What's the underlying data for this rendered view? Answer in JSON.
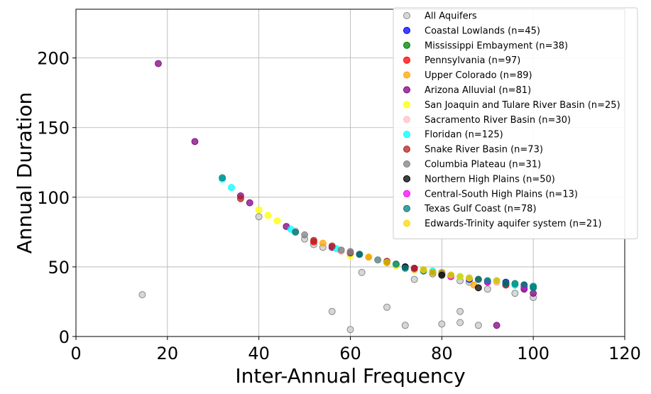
{
  "chart_data": {
    "type": "scatter",
    "xlabel": "Inter-Annual Frequency",
    "ylabel": "Annual Duration",
    "xlim": [
      0,
      120
    ],
    "ylim": [
      0,
      235
    ],
    "xticks": [
      0,
      20,
      40,
      60,
      80,
      100,
      120
    ],
    "yticks": [
      0,
      50,
      100,
      150,
      200
    ],
    "grid": true,
    "legend_position": "top-right",
    "series": [
      {
        "name": "All Aquifers",
        "color": "#d3d3d3",
        "edge": "#888888",
        "points": [
          [
            14.5,
            30
          ],
          [
            40,
            86
          ],
          [
            50,
            70
          ],
          [
            52,
            66
          ],
          [
            54,
            64
          ],
          [
            56,
            18
          ],
          [
            58,
            62
          ],
          [
            60,
            5
          ],
          [
            62.5,
            46
          ],
          [
            68,
            21
          ],
          [
            72,
            8
          ],
          [
            74,
            41
          ],
          [
            80,
            9
          ],
          [
            84,
            18
          ],
          [
            84,
            10
          ],
          [
            84,
            40
          ],
          [
            88,
            8
          ],
          [
            90,
            34
          ],
          [
            90,
            40
          ],
          [
            96,
            31
          ],
          [
            100,
            28
          ],
          [
            98,
            35
          ],
          [
            94,
            37
          ],
          [
            86,
            39
          ],
          [
            78,
            45
          ],
          [
            70,
            51
          ],
          [
            66,
            55
          ]
        ]
      },
      {
        "name": "Coastal Lowlands (n=45)",
        "color": "#0000ff",
        "edge": "#0000ff",
        "points": [
          [
            74,
            49
          ],
          [
            78,
            46
          ],
          [
            80,
            45
          ],
          [
            82,
            44
          ],
          [
            86,
            41
          ],
          [
            90,
            40
          ],
          [
            94,
            39
          ],
          [
            98,
            37
          ]
        ]
      },
      {
        "name": "Mississippi Embayment (n=38)",
        "color": "#008000",
        "edge": "#008000",
        "points": [
          [
            70,
            52
          ],
          [
            76,
            48
          ],
          [
            80,
            46
          ],
          [
            84,
            43
          ],
          [
            88,
            41
          ],
          [
            92,
            40
          ],
          [
            96,
            38
          ],
          [
            100,
            36
          ]
        ]
      },
      {
        "name": "Pennsylvania (n=97)",
        "color": "#ff0000",
        "edge": "#ff0000",
        "points": [
          [
            52,
            68
          ],
          [
            64,
            57
          ],
          [
            72,
            50
          ],
          [
            80,
            45
          ],
          [
            86,
            42
          ],
          [
            90,
            39
          ],
          [
            94,
            37
          ],
          [
            98,
            36
          ]
        ]
      },
      {
        "name": "Upper Colorado (n=89)",
        "color": "#ffa500",
        "edge": "#ffa500",
        "points": [
          [
            54,
            67
          ],
          [
            66,
            55
          ],
          [
            74,
            48
          ],
          [
            80,
            46
          ],
          [
            86,
            42
          ],
          [
            87,
            37
          ],
          [
            92,
            39
          ],
          [
            96,
            37
          ],
          [
            100,
            35
          ]
        ]
      },
      {
        "name": "Arizona Alluvial (n=81)",
        "color": "#800080",
        "edge": "#800080",
        "points": [
          [
            18,
            196
          ],
          [
            26,
            140
          ],
          [
            36,
            101
          ],
          [
            38,
            96
          ],
          [
            46,
            79
          ],
          [
            56,
            64
          ],
          [
            74,
            49
          ],
          [
            82,
            43
          ],
          [
            92,
            8
          ],
          [
            98,
            34
          ],
          [
            100,
            31
          ],
          [
            96,
            37
          ]
        ]
      },
      {
        "name": "San Joaquin and Tulare River Basin (n=25)",
        "color": "#ffff00",
        "edge": "#ffff00",
        "points": [
          [
            40,
            91
          ],
          [
            42,
            87
          ],
          [
            44,
            83
          ],
          [
            60,
            58
          ],
          [
            70,
            51
          ],
          [
            96,
            38
          ],
          [
            90,
            40
          ]
        ]
      },
      {
        "name": "Sacramento River Basin (n=30)",
        "color": "#ffc0cb",
        "edge": "#ffc0cb",
        "points": [
          [
            48,
            76
          ],
          [
            58,
            61
          ],
          [
            66,
            55
          ],
          [
            72,
            50
          ],
          [
            76,
            47
          ],
          [
            86,
            42
          ],
          [
            92,
            39
          ]
        ]
      },
      {
        "name": "Floridan (n=125)",
        "color": "#00ffff",
        "edge": "#00ffff",
        "points": [
          [
            32,
            113
          ],
          [
            34,
            107
          ],
          [
            47,
            77
          ],
          [
            57,
            63
          ],
          [
            60,
            60
          ],
          [
            66,
            55
          ],
          [
            78,
            47
          ],
          [
            84,
            43
          ],
          [
            90,
            40
          ],
          [
            96,
            37
          ],
          [
            100,
            36
          ]
        ]
      },
      {
        "name": "Snake River Basin (n=73)",
        "color": "#b22222",
        "edge": "#b22222",
        "points": [
          [
            36,
            99
          ],
          [
            52,
            69
          ],
          [
            56,
            65
          ],
          [
            60,
            60
          ],
          [
            64,
            57
          ],
          [
            68,
            54
          ],
          [
            74,
            49
          ],
          [
            82,
            44
          ],
          [
            88,
            41
          ],
          [
            94,
            38
          ]
        ]
      },
      {
        "name": "Columbia Plateau (n=31)",
        "color": "#808080",
        "edge": "#808080",
        "points": [
          [
            48,
            75
          ],
          [
            50,
            73
          ],
          [
            58,
            62
          ],
          [
            60,
            61
          ],
          [
            66,
            55
          ],
          [
            72,
            50
          ],
          [
            80,
            45
          ]
        ]
      },
      {
        "name": "Northern High Plains (n=50)",
        "color": "#000000",
        "edge": "#000000",
        "points": [
          [
            62,
            59
          ],
          [
            68,
            53
          ],
          [
            72,
            50
          ],
          [
            78,
            46
          ],
          [
            80,
            44
          ],
          [
            88,
            35
          ],
          [
            94,
            38
          ],
          [
            98,
            37
          ]
        ]
      },
      {
        "name": "Central-South High Plains (n=13)",
        "color": "#ff00ff",
        "edge": "#ff00ff",
        "points": [
          [
            82,
            43
          ],
          [
            90,
            39
          ],
          [
            98,
            36
          ]
        ]
      },
      {
        "name": "Texas Gulf Coast (n=78)",
        "color": "#008080",
        "edge": "#008080",
        "points": [
          [
            32,
            114
          ],
          [
            48,
            75
          ],
          [
            62,
            59
          ],
          [
            70,
            52
          ],
          [
            72,
            49
          ],
          [
            76,
            47
          ],
          [
            82,
            44
          ],
          [
            86,
            42
          ],
          [
            88,
            41
          ],
          [
            90,
            40
          ],
          [
            92,
            40
          ],
          [
            94,
            38
          ],
          [
            96,
            38
          ],
          [
            98,
            37
          ],
          [
            100,
            36
          ],
          [
            100,
            35
          ]
        ]
      },
      {
        "name": "Edwards-Trinity aquifer system (n=21)",
        "color": "#ffd700",
        "edge": "#ffd700",
        "points": [
          [
            64,
            57
          ],
          [
            68,
            53
          ],
          [
            76,
            48
          ],
          [
            78,
            46
          ],
          [
            82,
            44
          ],
          [
            84,
            43
          ],
          [
            86,
            42
          ],
          [
            92,
            40
          ]
        ]
      }
    ]
  }
}
